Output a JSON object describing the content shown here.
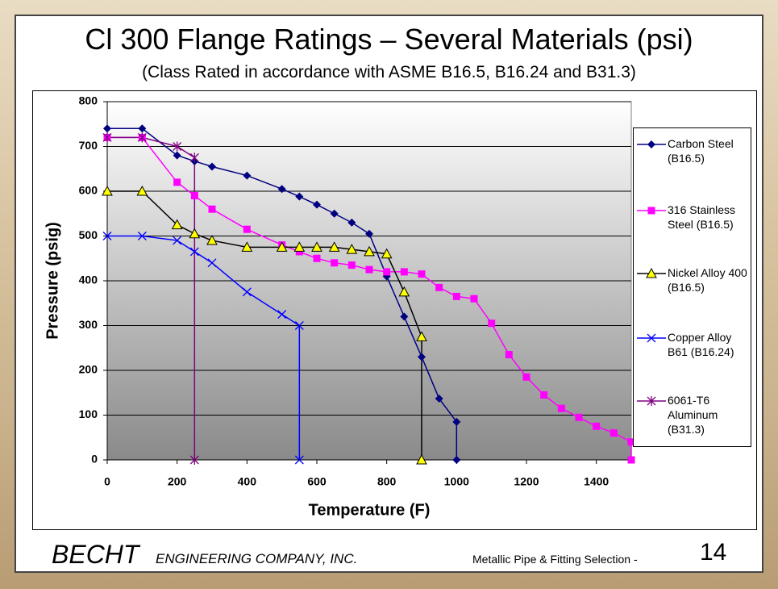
{
  "chart_data": {
    "type": "line",
    "title": "Cl 300 Flange Ratings – Several Materials (psi)",
    "subtitle": "(Class Rated in accordance with ASME B16.5, B16.24 and B31.3)",
    "x_label": "Temperature (F)",
    "y_label": "Pressure (psig)",
    "xlim": [
      0,
      1500
    ],
    "xticks": [
      0,
      200,
      400,
      600,
      800,
      1000,
      1200,
      1400
    ],
    "ylim": [
      0,
      800
    ],
    "yticks": [
      0,
      100,
      200,
      300,
      400,
      500,
      600,
      700,
      800
    ],
    "grid": true,
    "legend": "right",
    "series": [
      {
        "name": "Carbon Steel (B16.5)",
        "color": "#000080",
        "marker": "diamond",
        "marker_fill": "#000080",
        "x": [
          0,
          100,
          200,
          250,
          300,
          400,
          500,
          550,
          600,
          650,
          700,
          750,
          800,
          850,
          900,
          950,
          1000,
          1000
        ],
        "values": [
          740,
          740,
          680,
          667,
          655,
          635,
          605,
          588,
          570,
          550,
          530,
          505,
          410,
          320,
          230,
          137,
          85,
          0
        ]
      },
      {
        "name": "316 Stainless Steel (B16.5)",
        "color": "#ff00ff",
        "marker": "square",
        "marker_fill": "#ff00ff",
        "x": [
          0,
          100,
          200,
          250,
          300,
          400,
          500,
          550,
          600,
          650,
          700,
          750,
          800,
          850,
          900,
          950,
          1000,
          1050,
          1100,
          1150,
          1200,
          1250,
          1300,
          1350,
          1400,
          1450,
          1500,
          1500
        ],
        "values": [
          720,
          720,
          620,
          590,
          560,
          515,
          480,
          465,
          450,
          440,
          435,
          425,
          420,
          420,
          415,
          385,
          365,
          360,
          305,
          235,
          185,
          145,
          115,
          95,
          75,
          60,
          40,
          0
        ]
      },
      {
        "name": "Nickel Alloy 400 (B16.5)",
        "color": "#000000",
        "marker": "triangle",
        "marker_fill": "#ffff00",
        "x": [
          0,
          100,
          200,
          250,
          300,
          400,
          500,
          550,
          600,
          650,
          700,
          750,
          800,
          850,
          900,
          900
        ],
        "values": [
          600,
          600,
          525,
          505,
          490,
          475,
          475,
          475,
          475,
          475,
          470,
          465,
          460,
          375,
          275,
          0
        ]
      },
      {
        "name": "Copper Alloy B61 (B16.24)",
        "color": "#0000ff",
        "marker": "x",
        "marker_fill": "#0000ff",
        "x": [
          0,
          100,
          200,
          250,
          300,
          400,
          500,
          550,
          550
        ],
        "values": [
          500,
          500,
          490,
          465,
          440,
          375,
          325,
          300,
          0
        ]
      },
      {
        "name": "6061-T6 Aluminum (B31.3)",
        "color": "#800080",
        "marker": "asterisk",
        "marker_fill": "#800080",
        "x": [
          0,
          100,
          200,
          250,
          250
        ],
        "values": [
          720,
          720,
          700,
          675,
          0
        ]
      }
    ]
  },
  "footer": {
    "company": "BECHT",
    "company_rest": "ENGINEERING COMPANY, INC.",
    "course": "Metallic Pipe & Fitting Selection -",
    "page": 14
  }
}
